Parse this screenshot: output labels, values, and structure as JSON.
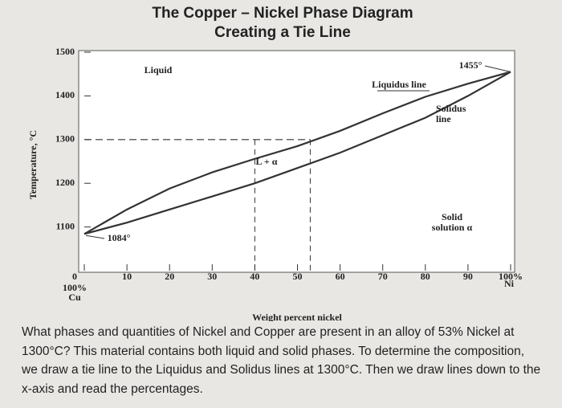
{
  "chart_data": {
    "type": "line",
    "title": "The Copper – Nickel Phase Diagram",
    "subtitle": "Creating a Tie Line",
    "x_label": "Weight percent nickel",
    "y_label": "Temperature, °C",
    "x": [
      0,
      10,
      20,
      30,
      40,
      50,
      60,
      70,
      80,
      90,
      100
    ],
    "series": [
      {
        "color": "#333333",
        "values": [
          1084,
          1140,
          1188,
          1225,
          1256,
          1285,
          1320,
          1360,
          1398,
          1428,
          1455
        ]
      },
      {
        "color": "#333333",
        "values": [
          1084,
          1110,
          1140,
          1170,
          1200,
          1235,
          1270,
          1310,
          1350,
          1400,
          1455
        ]
      }
    ],
    "xlim": [
      0,
      100
    ],
    "ylim": [
      1000,
      1500
    ],
    "xticks": [
      0,
      10,
      20,
      30,
      40,
      50,
      60,
      70,
      80,
      90,
      {
        "value": 100,
        "label": "100%"
      }
    ],
    "yticks": [
      1100,
      1200,
      1300,
      1400,
      1500
    ],
    "x_left_end": [
      "100%",
      "Cu"
    ],
    "x_right_end": "Ni",
    "tie_line": {
      "temperature": 1300,
      "x": [
        40,
        53
      ]
    },
    "annotations": [
      [
        "Liquid"
      ],
      [
        "Liquidus line"
      ],
      [
        "1455°"
      ],
      [
        "Solidus",
        "line"
      ],
      [
        "L + α"
      ],
      [
        "Solid",
        "solution α"
      ],
      [
        "1084°"
      ]
    ],
    "description": "What phases and quantities of Nickel and Copper are present in an alloy of 53% Nickel at 1300°C? This material contains both liquid and solid phases. To determine the composition, we draw a tie line to the Liquidus and Solidus lines at 1300°C. Then we draw lines down to the x-axis and read the percentages."
  }
}
